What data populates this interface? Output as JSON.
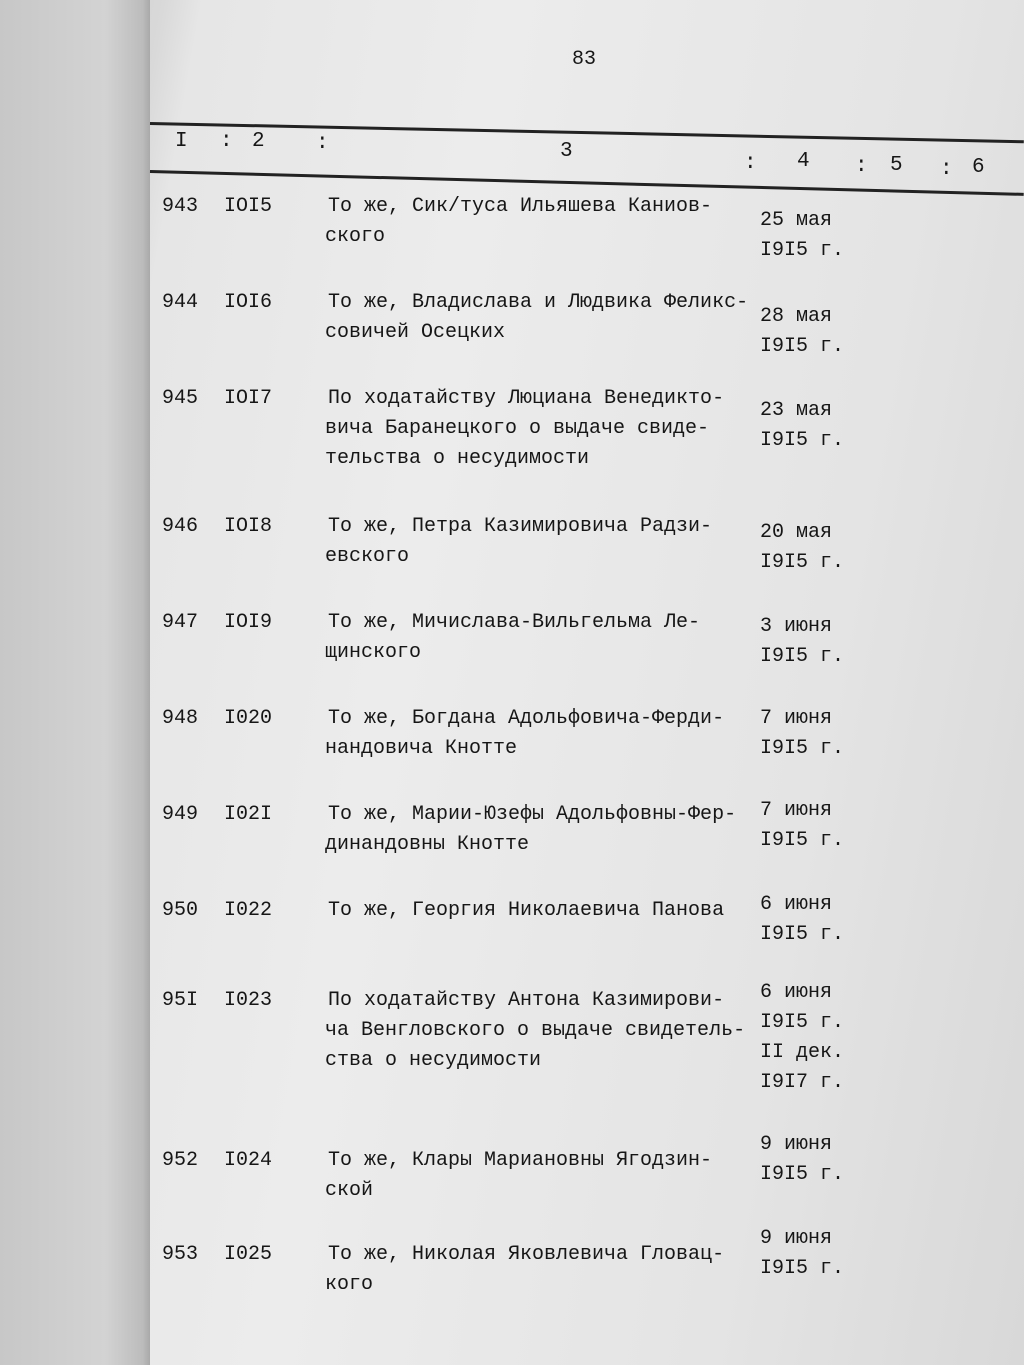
{
  "page_number": "83",
  "header": {
    "col1": "I",
    "col2": "2",
    "col3": "3",
    "col4": "4",
    "col5": "5",
    "col6": "6",
    "sep": ":"
  },
  "rows": [
    {
      "num": "943",
      "inv": "IOI5",
      "desc": [
        "То же, Сик/туса Ильяшева Каниов-",
        "ского"
      ],
      "date": [
        "25 мая",
        "I9I5 г."
      ]
    },
    {
      "num": "944",
      "inv": "IOI6",
      "desc": [
        "То же, Владислава и Людвика Феликс-",
        "совичей Осецких"
      ],
      "date": [
        "28 мая",
        "I9I5 г."
      ]
    },
    {
      "num": "945",
      "inv": "IOI7",
      "desc": [
        "По ходатайству Люциана Венедикто-",
        "вича Баранецкого о выдаче свиде-",
        "тельства о несудимости"
      ],
      "date": [
        "23 мая",
        "I9I5 г."
      ]
    },
    {
      "num": "946",
      "inv": "IOI8",
      "desc": [
        "То же, Петра Казимировича Радзи-",
        "евского"
      ],
      "date": [
        "20 мая",
        "I9I5 г."
      ]
    },
    {
      "num": "947",
      "inv": "IOI9",
      "desc": [
        "То же, Мичислава-Вильгельма Ле-",
        "щинского"
      ],
      "date": [
        "3 июня",
        "I9I5 г."
      ]
    },
    {
      "num": "948",
      "inv": "I020",
      "desc": [
        "То же, Богдана Адольфовича-Ферди-",
        "нандовича Кнотте"
      ],
      "date": [
        "7 июня",
        "I9I5 г."
      ]
    },
    {
      "num": "949",
      "inv": "I02I",
      "desc": [
        "То же, Марии-Юзефы Адольфовны-Фер-",
        "динандовны Кнотте"
      ],
      "date": [
        "7 июня",
        "I9I5 г."
      ]
    },
    {
      "num": "950",
      "inv": "I022",
      "desc": [
        "То же, Георгия Николаевича Панова"
      ],
      "date": [
        "6 июня",
        "I9I5 г."
      ]
    },
    {
      "num": "95I",
      "inv": "I023",
      "desc": [
        "По ходатайству Антона Казимирови-",
        "ча Венгловского о выдаче свидетель-",
        "ства о несудимости"
      ],
      "date": [
        "6 июня",
        "I9I5 г.",
        "II дек.",
        "I9I7 г."
      ]
    },
    {
      "num": "952",
      "inv": "I024",
      "desc": [
        "То же, Клары Мариановны Ягодзин-",
        "ской"
      ],
      "date": [
        "9 июня",
        "I9I5 г."
      ]
    },
    {
      "num": "953",
      "inv": "I025",
      "desc": [
        "То же, Николая Яковлевича Гловац-",
        "кого"
      ],
      "date": [
        "9 июня",
        "I9I5 г."
      ]
    }
  ]
}
